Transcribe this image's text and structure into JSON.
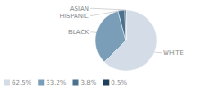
{
  "chart_data": {
    "type": "pie",
    "categories": [
      "WHITE",
      "BLACK",
      "HISPANIC",
      "ASIAN"
    ],
    "values": [
      62.5,
      33.2,
      3.8,
      0.5
    ],
    "colors": [
      "#d4dce8",
      "#7a9db8",
      "#4a718e",
      "#1e3f5e"
    ],
    "value_labels": [
      "62.5%",
      "33.2%",
      "3.8%",
      "0.5%"
    ],
    "legend": "bottom"
  }
}
